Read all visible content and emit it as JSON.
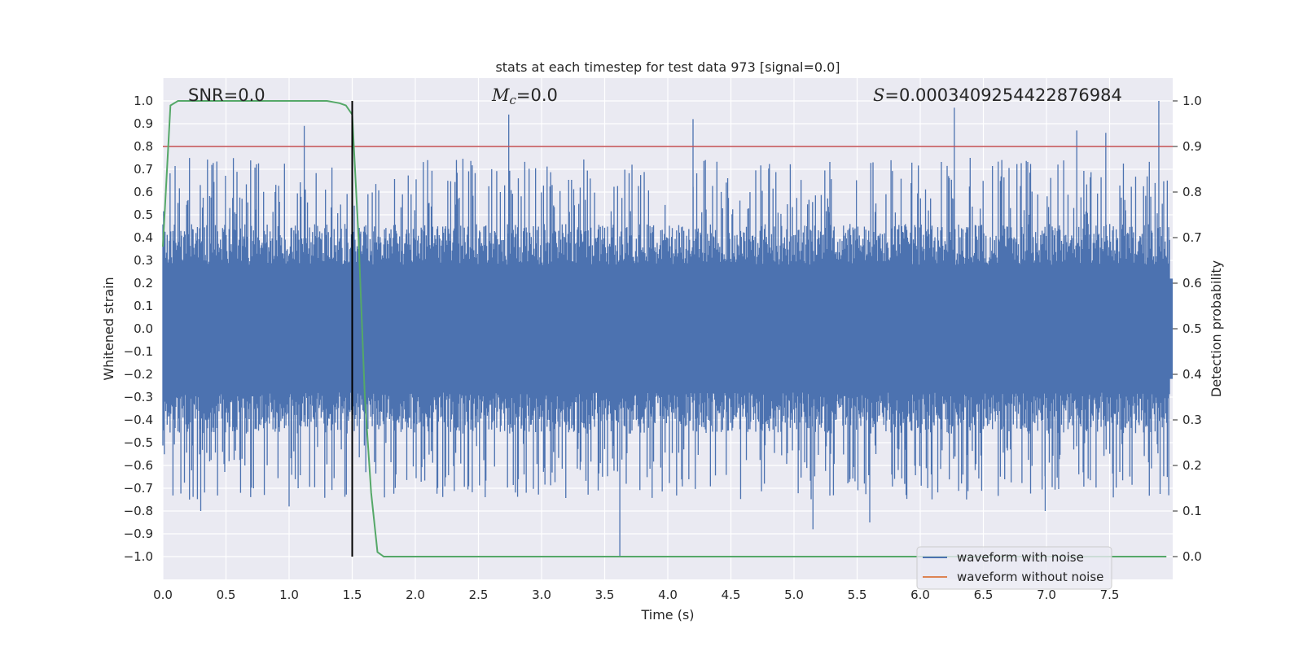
{
  "chart_data": {
    "type": "line",
    "title": "stats at each timestep for test data 973 [signal=0.0]",
    "xlabel": "Time (s)",
    "ylabel": "Whitened strain",
    "y2label": "Detection probability",
    "xlim": [
      0.0,
      8.0
    ],
    "ylim": [
      -1.1,
      1.1
    ],
    "y2lim": [
      -0.05,
      1.05
    ],
    "grid": true,
    "xticks": [
      0.0,
      0.5,
      1.0,
      1.5,
      2.0,
      2.5,
      3.0,
      3.5,
      4.0,
      4.5,
      5.0,
      5.5,
      6.0,
      6.5,
      7.0,
      7.5
    ],
    "xtick_labels": [
      "0.0",
      "0.5",
      "1.0",
      "1.5",
      "2.0",
      "2.5",
      "3.0",
      "3.5",
      "4.0",
      "4.5",
      "5.0",
      "5.5",
      "6.0",
      "6.5",
      "7.0",
      "7.5"
    ],
    "yticks": [
      1.0,
      0.9,
      0.8,
      0.7,
      0.6,
      0.5,
      0.4,
      0.3,
      0.2,
      0.1,
      0.0,
      -0.1,
      -0.2,
      -0.3,
      -0.4,
      -0.5,
      -0.6,
      -0.7,
      -0.8,
      -0.9,
      -1.0
    ],
    "ytick_labels": [
      "1.0",
      "0.9",
      "0.8",
      "0.7",
      "0.6",
      "0.5",
      "0.4",
      "0.3",
      "0.2",
      "0.1",
      "0.0",
      "−0.1",
      "−0.2",
      "−0.3",
      "−0.4",
      "−0.5",
      "−0.6",
      "−0.7",
      "−0.8",
      "−0.9",
      "−1.0"
    ],
    "y2ticks": [
      1.0,
      0.9,
      0.8,
      0.7,
      0.6,
      0.5,
      0.4,
      0.3,
      0.2,
      0.1,
      0.0
    ],
    "y2tick_labels": [
      "1.0",
      "0.9",
      "0.8",
      "0.7",
      "0.6",
      "0.5",
      "0.4",
      "0.3",
      "0.2",
      "0.1",
      "0.0"
    ],
    "annotations": {
      "snr": "SNR=0.0",
      "mc_symbol": "M",
      "mc_sub": "c",
      "mc_value": "=0.0",
      "s_symbol": "S",
      "s_value": "=0.0003409254422876984"
    },
    "threshold": {
      "y2": 0.9,
      "color": "#c44e52"
    },
    "vline": {
      "x": 1.5,
      "color": "#000000"
    },
    "series": [
      {
        "name": "waveform with noise",
        "color": "#4c72b0",
        "description_values": "dense noise in [-1.0, 1.0]",
        "peaks": [
          {
            "x": 1.12,
            "y": 0.89
          },
          {
            "x": 2.74,
            "y": 0.94
          },
          {
            "x": 4.2,
            "y": 0.92
          },
          {
            "x": 6.27,
            "y": 0.97
          },
          {
            "x": 7.24,
            "y": 0.87
          },
          {
            "x": 7.47,
            "y": 0.86
          },
          {
            "x": 7.89,
            "y": 1.0
          },
          {
            "x": 3.62,
            "y": -1.0
          },
          {
            "x": 0.3,
            "y": -0.8
          },
          {
            "x": 1.0,
            "y": -0.78
          },
          {
            "x": 5.15,
            "y": -0.88
          },
          {
            "x": 5.6,
            "y": -0.85
          },
          {
            "x": 6.99,
            "y": -0.8
          }
        ]
      },
      {
        "name": "waveform without noise",
        "color": "#dd8452",
        "values": []
      },
      {
        "name": "detection probability",
        "color": "#55a868",
        "axis": "y2",
        "x": [
          0.0,
          0.06,
          0.12,
          0.2,
          0.4,
          0.6,
          0.8,
          1.0,
          1.2,
          1.3,
          1.4,
          1.45,
          1.5,
          1.55,
          1.6,
          1.65,
          1.7,
          1.75,
          1.8,
          2.5,
          3.5,
          4.5,
          5.5,
          6.5,
          7.5,
          7.95
        ],
        "values": [
          0.68,
          0.99,
          1.0,
          1.0,
          1.0,
          1.0,
          1.0,
          1.0,
          1.0,
          1.0,
          0.995,
          0.99,
          0.97,
          0.7,
          0.35,
          0.14,
          0.01,
          -0.0,
          0.0,
          0.0,
          0.0,
          0.0,
          0.0,
          0.0,
          0.0,
          0.0
        ]
      }
    ],
    "legend": {
      "placement": "lower-right",
      "entries": [
        {
          "label": "waveform with noise",
          "color": "#4c72b0"
        },
        {
          "label": "waveform without noise",
          "color": "#dd8452"
        }
      ]
    }
  },
  "colors": {
    "axes_bg": "#eaeaf2",
    "grid": "#ffffff",
    "noise": "#4c72b0",
    "prob": "#55a868",
    "threshold": "#c44e52"
  }
}
